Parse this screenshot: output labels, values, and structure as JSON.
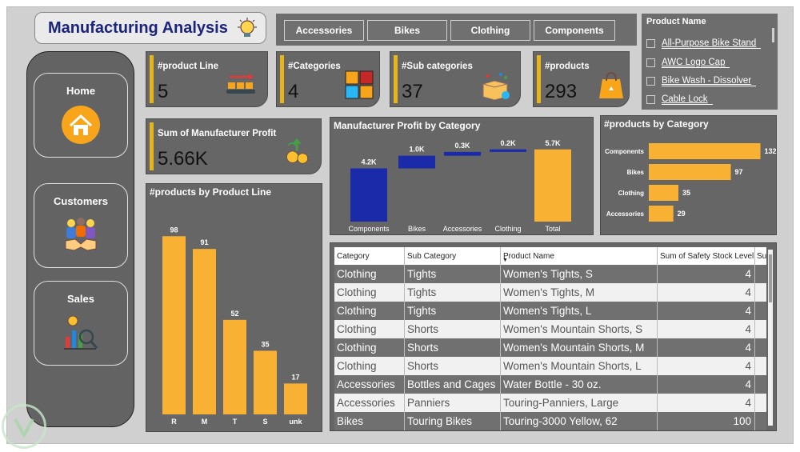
{
  "title": "Manufacturing Analysis",
  "tabs": [
    "Accessories",
    "Bikes",
    "Clothing",
    "Components"
  ],
  "slicer": {
    "title": "Product Name",
    "items": [
      "All-Purpose Bike Stand",
      "AWC Logo Cap",
      "Bike Wash - Dissolver",
      "Cable Lock"
    ]
  },
  "nav": [
    {
      "label": "Home",
      "icon": "home-icon"
    },
    {
      "label": "Customers",
      "icon": "handshake-icon"
    },
    {
      "label": "Sales",
      "icon": "sales-analysis-icon"
    }
  ],
  "kpis": {
    "product_line": {
      "label": "#product Line",
      "value": "5",
      "icon": "conveyor-icon"
    },
    "categories": {
      "label": "#Categories",
      "value": "4",
      "icon": "category-boxes-icon"
    },
    "sub_categories": {
      "label": "#Sub categories",
      "value": "37",
      "icon": "open-box-icon"
    },
    "products": {
      "label": "#products",
      "value": "293",
      "icon": "shopping-bag-icon"
    },
    "profit": {
      "label": "Sum of Manufacturer Profit",
      "value": "5.66K",
      "icon": "money-growth-icon"
    }
  },
  "colors": {
    "accent": "#f8b133",
    "waterfall_blue": "#1a2aa8",
    "panel": "#666666",
    "title": "#1a237e"
  },
  "chart_data": [
    {
      "type": "bar",
      "title": "#products by Product Line",
      "categories": [
        "R",
        "M",
        "T",
        "S",
        "unk"
      ],
      "values": [
        98,
        91,
        52,
        35,
        17
      ],
      "ylim": [
        0,
        110
      ]
    },
    {
      "type": "bar",
      "subtype": "waterfall",
      "title": "Manufacturer Profit by Category",
      "categories": [
        "Components",
        "Bikes",
        "Accessories",
        "Clothing",
        "Total"
      ],
      "values": [
        4.2,
        1.0,
        0.3,
        0.2,
        5.7
      ],
      "labels": [
        "4.2K",
        "1.0K",
        "0.3K",
        "0.2K",
        "5.7K"
      ],
      "ylim": [
        0,
        6
      ]
    },
    {
      "type": "bar",
      "orientation": "horizontal",
      "title": "#products by Category",
      "categories": [
        "Components",
        "Bikes",
        "Clothing",
        "Accessories"
      ],
      "values": [
        132,
        97,
        35,
        29
      ],
      "xlim": [
        0,
        140
      ]
    }
  ],
  "table": {
    "headers": [
      "Category",
      "Sub Category",
      "Product Name",
      "Sum of Safety Stock Level",
      "Su"
    ],
    "rows": [
      [
        "Clothing",
        "Tights",
        "Women's Tights, S",
        "4"
      ],
      [
        "Clothing",
        "Tights",
        "Women's Tights, M",
        "4"
      ],
      [
        "Clothing",
        "Tights",
        "Women's Tights, L",
        "4"
      ],
      [
        "Clothing",
        "Shorts",
        "Women's Mountain Shorts, S",
        "4"
      ],
      [
        "Clothing",
        "Shorts",
        "Women's Mountain Shorts, M",
        "4"
      ],
      [
        "Clothing",
        "Shorts",
        "Women's Mountain Shorts, L",
        "4"
      ],
      [
        "Accessories",
        "Bottles and Cages",
        "Water Bottle - 30 oz.",
        "4"
      ],
      [
        "Accessories",
        "Panniers",
        "Touring-Panniers, Large",
        "4"
      ],
      [
        "Bikes",
        "Touring Bikes",
        "Touring-3000 Yellow, 62",
        "100"
      ]
    ]
  }
}
